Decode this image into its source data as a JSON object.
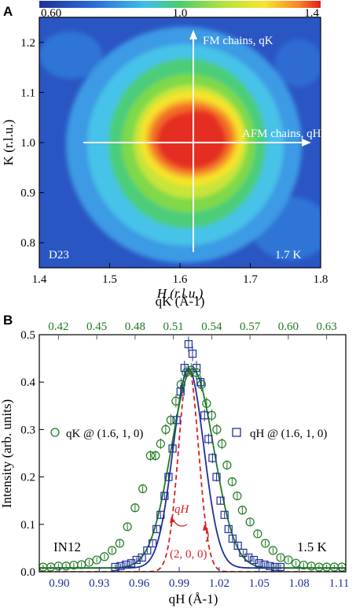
{
  "colors": {
    "green": "#1f7a1f",
    "blue": "#1f2f9a",
    "red_dashed": "#d61f1f"
  },
  "chart_data": [
    {
      "panel": "A",
      "type": "heatmap",
      "colorbar": {
        "ticks": [
          "0.60",
          "1.0",
          "1.4"
        ],
        "min": 0.6,
        "max": 1.4
      },
      "xlabel": "H (r.l.u.)",
      "ylabel": "K (r.l.u.)",
      "xlim": [
        1.4,
        1.8
      ],
      "ylim": [
        0.75,
        1.25
      ],
      "xticks": [
        "1.4",
        "1.5",
        "1.6",
        "1.7",
        "1.8"
      ],
      "yticks": [
        "0.8",
        "0.9",
        "1.0",
        "1.1",
        "1.2"
      ],
      "peak": {
        "H": 1.6,
        "K": 1.0,
        "value": 1.4
      },
      "annotations": {
        "fm": "FM chains, qK",
        "afm": "AFM chains, qH",
        "instrument": "D23",
        "temperature": "1.7 K"
      }
    },
    {
      "panel": "B",
      "type": "scatter",
      "xlabel": "qH (Å-1)",
      "x2label": "qK (Å-1)",
      "ylabel": "Intensity (arb. units)",
      "xlim": [
        0.885,
        1.115
      ],
      "x2lim": [
        0.405,
        0.645
      ],
      "ylim": [
        0,
        0.5
      ],
      "xticks": [
        "0.90",
        "0.93",
        "0.96",
        "0.99",
        "1.02",
        "1.05",
        "1.08",
        "1.11"
      ],
      "x2ticks": [
        "0.42",
        "0.45",
        "0.48",
        "0.51",
        "0.54",
        "0.57",
        "0.60",
        "0.63"
      ],
      "yticks": [
        "0.0",
        "0.1",
        "0.2",
        "0.3",
        "0.4",
        "0.5"
      ],
      "legend": {
        "qk": "qK @ (1.6, 1, 0)",
        "qh": "qH @ (1.6, 1, 0)"
      },
      "series": [
        {
          "name": "qK @ (1.6, 1, 0)",
          "axis": "top",
          "marker": "circle",
          "fit": {
            "center": 0.525,
            "sigma": 0.0165,
            "amp": 0.42,
            "bg": 0.008
          },
          "x": [
            0.408,
            0.414,
            0.42,
            0.426,
            0.432,
            0.438,
            0.444,
            0.45,
            0.456,
            0.462,
            0.468,
            0.474,
            0.48,
            0.486,
            0.492,
            0.496,
            0.5,
            0.504,
            0.508,
            0.512,
            0.516,
            0.52,
            0.524,
            0.528,
            0.532,
            0.536,
            0.54,
            0.544,
            0.548,
            0.552,
            0.556,
            0.56,
            0.564,
            0.57,
            0.576,
            0.582,
            0.588,
            0.594,
            0.6,
            0.606,
            0.612,
            0.618,
            0.624,
            0.63,
            0.636,
            0.642
          ],
          "y": [
            0.01,
            0.01,
            0.012,
            0.012,
            0.014,
            0.015,
            0.02,
            0.025,
            0.032,
            0.045,
            0.06,
            0.095,
            0.135,
            0.175,
            0.245,
            0.245,
            0.27,
            0.3,
            0.32,
            0.36,
            0.395,
            0.42,
            0.425,
            0.42,
            0.395,
            0.355,
            0.33,
            0.3,
            0.27,
            0.225,
            0.19,
            0.16,
            0.13,
            0.105,
            0.08,
            0.06,
            0.045,
            0.03,
            0.025,
            0.018,
            0.014,
            0.012,
            0.01,
            0.01,
            0.01,
            0.01
          ]
        },
        {
          "name": "qH @ (1.6, 1, 0)",
          "axis": "bottom",
          "marker": "square",
          "fit": {
            "center": 0.997,
            "sigma": 0.0115,
            "amp": 0.42,
            "bg": 0.008
          },
          "x": [
            0.942,
            0.946,
            0.95,
            0.954,
            0.958,
            0.962,
            0.966,
            0.97,
            0.973,
            0.976,
            0.979,
            0.982,
            0.985,
            0.988,
            0.991,
            0.994,
            0.997,
            1.0,
            1.003,
            1.006,
            1.009,
            1.012,
            1.015,
            1.018,
            1.021,
            1.024,
            1.027,
            1.03,
            1.034,
            1.038,
            1.042,
            1.046,
            1.05,
            1.054,
            1.058,
            1.062,
            1.066
          ],
          "y": [
            0.01,
            0.012,
            0.015,
            0.018,
            0.025,
            0.03,
            0.045,
            0.06,
            0.09,
            0.12,
            0.16,
            0.2,
            0.26,
            0.32,
            0.38,
            0.43,
            0.48,
            0.46,
            0.43,
            0.4,
            0.33,
            0.28,
            0.24,
            0.2,
            0.15,
            0.12,
            0.09,
            0.07,
            0.055,
            0.04,
            0.03,
            0.025,
            0.018,
            0.015,
            0.012,
            0.01,
            0.01
          ]
        },
        {
          "name": "(2, 0, 0)",
          "axis": "bottom",
          "style": "dashed",
          "fit": {
            "center": 0.997,
            "sigma": 0.0075,
            "amp": 0.43,
            "bg": 0.0
          }
        }
      ],
      "annotations": {
        "qh_red": "qH",
        "bragg": "(2, 0, 0)",
        "instrument": "IN12",
        "temperature": "1.5 K"
      }
    }
  ]
}
